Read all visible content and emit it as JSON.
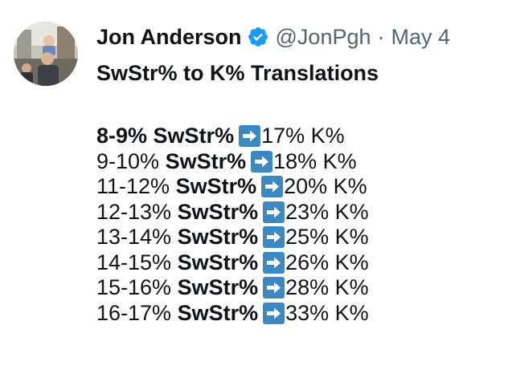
{
  "author": {
    "name": "Jon Anderson",
    "handle": "@JonPgh",
    "separator": "·",
    "date": "May 4"
  },
  "tweet": {
    "title": "SwStr% to K% Translations",
    "rows": [
      {
        "range": "8-9%",
        "swstr": "SwStr%",
        "k": "17% K%",
        "range_bold": true
      },
      {
        "range": "9-10%",
        "swstr": "SwStr%",
        "k": "18% K%",
        "range_bold": false
      },
      {
        "range": "11-12%",
        "swstr": "SwStr%",
        "k": "20% K%",
        "range_bold": false
      },
      {
        "range": "12-13%",
        "swstr": "SwStr%",
        "k": "23% K%",
        "range_bold": false
      },
      {
        "range": "13-14%",
        "swstr": "SwStr%",
        "k": "25% K%",
        "range_bold": false
      },
      {
        "range": "14-15%",
        "swstr": "SwStr%",
        "k": "26% K%",
        "range_bold": false
      },
      {
        "range": "15-16%",
        "swstr": "SwStr%",
        "k": "28% K%",
        "range_bold": false
      },
      {
        "range": "16-17%",
        "swstr": "SwStr%",
        "k": "33% K%",
        "range_bold": false
      }
    ]
  },
  "icons": {
    "avatar": "avatar-photo",
    "verified": "verified-badge-icon",
    "arrow": "right-arrow-emoji-icon"
  },
  "colors": {
    "text": "#0f1419",
    "muted": "#536471",
    "verified_blue": "#1d9bf0",
    "arrow_blue": "#3b88c3"
  }
}
